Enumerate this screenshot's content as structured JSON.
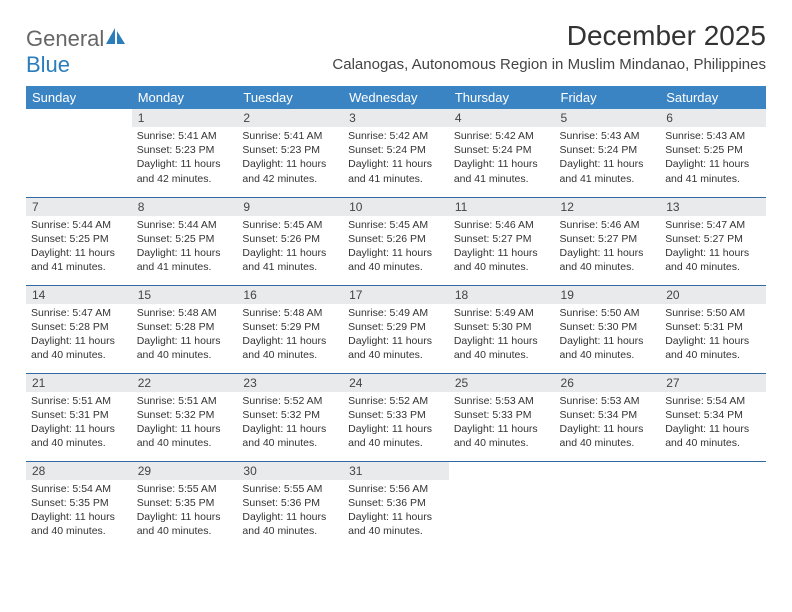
{
  "brand": {
    "general": "General",
    "blue": "Blue"
  },
  "title": "December 2025",
  "location": "Calanogas, Autonomous Region in Muslim Mindanao, Philippines",
  "colors": {
    "header_bg": "#3b84c4",
    "header_fg": "#ffffff",
    "daybar_bg": "#e9eaec",
    "row_divider": "#2d6aa4",
    "text": "#333333",
    "brand_gray": "#666666",
    "brand_blue": "#2b7dbb"
  },
  "weekdays": [
    "Sunday",
    "Monday",
    "Tuesday",
    "Wednesday",
    "Thursday",
    "Friday",
    "Saturday"
  ],
  "weeks": [
    [
      null,
      {
        "n": "1",
        "sunrise": "5:41 AM",
        "sunset": "5:23 PM",
        "daylight": "11 hours and 42 minutes."
      },
      {
        "n": "2",
        "sunrise": "5:41 AM",
        "sunset": "5:23 PM",
        "daylight": "11 hours and 42 minutes."
      },
      {
        "n": "3",
        "sunrise": "5:42 AM",
        "sunset": "5:24 PM",
        "daylight": "11 hours and 41 minutes."
      },
      {
        "n": "4",
        "sunrise": "5:42 AM",
        "sunset": "5:24 PM",
        "daylight": "11 hours and 41 minutes."
      },
      {
        "n": "5",
        "sunrise": "5:43 AM",
        "sunset": "5:24 PM",
        "daylight": "11 hours and 41 minutes."
      },
      {
        "n": "6",
        "sunrise": "5:43 AM",
        "sunset": "5:25 PM",
        "daylight": "11 hours and 41 minutes."
      }
    ],
    [
      {
        "n": "7",
        "sunrise": "5:44 AM",
        "sunset": "5:25 PM",
        "daylight": "11 hours and 41 minutes."
      },
      {
        "n": "8",
        "sunrise": "5:44 AM",
        "sunset": "5:25 PM",
        "daylight": "11 hours and 41 minutes."
      },
      {
        "n": "9",
        "sunrise": "5:45 AM",
        "sunset": "5:26 PM",
        "daylight": "11 hours and 41 minutes."
      },
      {
        "n": "10",
        "sunrise": "5:45 AM",
        "sunset": "5:26 PM",
        "daylight": "11 hours and 40 minutes."
      },
      {
        "n": "11",
        "sunrise": "5:46 AM",
        "sunset": "5:27 PM",
        "daylight": "11 hours and 40 minutes."
      },
      {
        "n": "12",
        "sunrise": "5:46 AM",
        "sunset": "5:27 PM",
        "daylight": "11 hours and 40 minutes."
      },
      {
        "n": "13",
        "sunrise": "5:47 AM",
        "sunset": "5:27 PM",
        "daylight": "11 hours and 40 minutes."
      }
    ],
    [
      {
        "n": "14",
        "sunrise": "5:47 AM",
        "sunset": "5:28 PM",
        "daylight": "11 hours and 40 minutes."
      },
      {
        "n": "15",
        "sunrise": "5:48 AM",
        "sunset": "5:28 PM",
        "daylight": "11 hours and 40 minutes."
      },
      {
        "n": "16",
        "sunrise": "5:48 AM",
        "sunset": "5:29 PM",
        "daylight": "11 hours and 40 minutes."
      },
      {
        "n": "17",
        "sunrise": "5:49 AM",
        "sunset": "5:29 PM",
        "daylight": "11 hours and 40 minutes."
      },
      {
        "n": "18",
        "sunrise": "5:49 AM",
        "sunset": "5:30 PM",
        "daylight": "11 hours and 40 minutes."
      },
      {
        "n": "19",
        "sunrise": "5:50 AM",
        "sunset": "5:30 PM",
        "daylight": "11 hours and 40 minutes."
      },
      {
        "n": "20",
        "sunrise": "5:50 AM",
        "sunset": "5:31 PM",
        "daylight": "11 hours and 40 minutes."
      }
    ],
    [
      {
        "n": "21",
        "sunrise": "5:51 AM",
        "sunset": "5:31 PM",
        "daylight": "11 hours and 40 minutes."
      },
      {
        "n": "22",
        "sunrise": "5:51 AM",
        "sunset": "5:32 PM",
        "daylight": "11 hours and 40 minutes."
      },
      {
        "n": "23",
        "sunrise": "5:52 AM",
        "sunset": "5:32 PM",
        "daylight": "11 hours and 40 minutes."
      },
      {
        "n": "24",
        "sunrise": "5:52 AM",
        "sunset": "5:33 PM",
        "daylight": "11 hours and 40 minutes."
      },
      {
        "n": "25",
        "sunrise": "5:53 AM",
        "sunset": "5:33 PM",
        "daylight": "11 hours and 40 minutes."
      },
      {
        "n": "26",
        "sunrise": "5:53 AM",
        "sunset": "5:34 PM",
        "daylight": "11 hours and 40 minutes."
      },
      {
        "n": "27",
        "sunrise": "5:54 AM",
        "sunset": "5:34 PM",
        "daylight": "11 hours and 40 minutes."
      }
    ],
    [
      {
        "n": "28",
        "sunrise": "5:54 AM",
        "sunset": "5:35 PM",
        "daylight": "11 hours and 40 minutes."
      },
      {
        "n": "29",
        "sunrise": "5:55 AM",
        "sunset": "5:35 PM",
        "daylight": "11 hours and 40 minutes."
      },
      {
        "n": "30",
        "sunrise": "5:55 AM",
        "sunset": "5:36 PM",
        "daylight": "11 hours and 40 minutes."
      },
      {
        "n": "31",
        "sunrise": "5:56 AM",
        "sunset": "5:36 PM",
        "daylight": "11 hours and 40 minutes."
      },
      null,
      null,
      null
    ]
  ],
  "labels": {
    "sunrise": "Sunrise:",
    "sunset": "Sunset:",
    "daylight": "Daylight:"
  }
}
